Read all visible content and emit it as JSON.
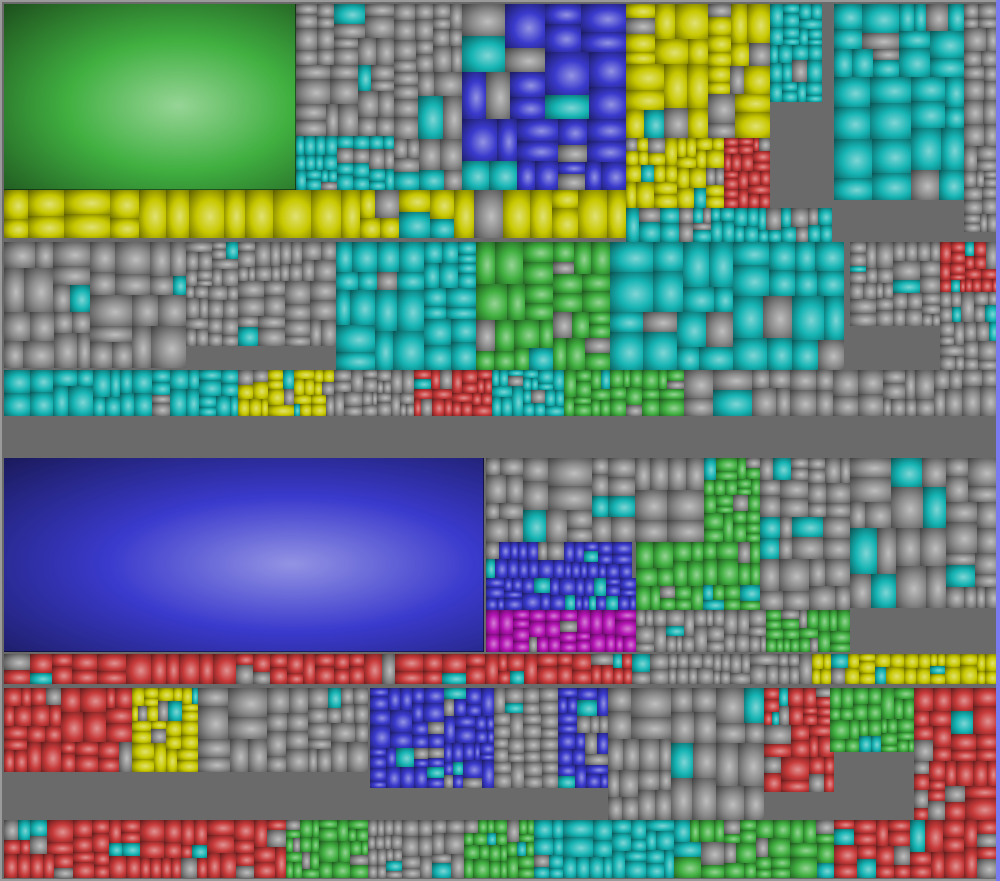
{
  "view": {
    "type": "disk-usage-treemap"
  },
  "palette": {
    "green": "#40b040",
    "gray": "#8a8a8a",
    "cyan": "#16b4b4",
    "blue": "#3a3acd",
    "yellow": "#c8c800",
    "red": "#c83a3a",
    "magenta": "#b414b4",
    "violet": "#7a7af0"
  },
  "blocks": [
    {
      "color": "green",
      "seed": 0,
      "big": true
    },
    {
      "color": "gray",
      "seed": 1
    },
    {
      "color": "cyan",
      "seed": 2
    },
    {
      "color": "gray",
      "seed": 3
    },
    {
      "color": "blue",
      "seed": 4
    },
    {
      "color": "yellow",
      "seed": 5
    },
    {
      "color": "yellow",
      "seed": 6
    },
    {
      "color": "red",
      "seed": 7
    },
    {
      "color": "cyan",
      "seed": 8
    },
    {
      "color": "cyan",
      "seed": 9
    },
    {
      "color": "gray",
      "seed": 10
    },
    {
      "color": "yellow",
      "seed": 11
    },
    {
      "color": "cyan",
      "seed": 12
    },
    {
      "color": "gray",
      "seed": 13
    },
    {
      "color": "gray",
      "seed": 14
    },
    {
      "color": "gray",
      "seed": 15
    },
    {
      "color": "cyan",
      "seed": 16
    },
    {
      "color": "green",
      "seed": 17
    },
    {
      "color": "cyan",
      "seed": 18
    },
    {
      "color": "gray",
      "seed": 19
    },
    {
      "color": "red",
      "seed": 20
    },
    {
      "color": "gray",
      "seed": 21
    },
    {
      "color": "cyan",
      "seed": 22
    },
    {
      "color": "yellow",
      "seed": 23
    },
    {
      "color": "gray",
      "seed": 24
    },
    {
      "color": "red",
      "seed": 25
    },
    {
      "color": "cyan",
      "seed": 26
    },
    {
      "color": "green",
      "seed": 27
    },
    {
      "color": "gray",
      "seed": 28
    },
    {
      "color": "blue",
      "seed": 29,
      "big": true
    },
    {
      "color": "blue",
      "seed": 30
    },
    {
      "color": "gray",
      "seed": 31
    },
    {
      "color": "green",
      "seed": 32
    },
    {
      "color": "gray",
      "seed": 33
    },
    {
      "color": "gray",
      "seed": 34
    },
    {
      "color": "blue",
      "seed": 35
    },
    {
      "color": "green",
      "seed": 36
    },
    {
      "color": "magenta",
      "seed": 37
    },
    {
      "color": "gray",
      "seed": 38
    },
    {
      "color": "green",
      "seed": 39
    },
    {
      "color": "red",
      "seed": 40
    },
    {
      "color": "red",
      "seed": 41
    },
    {
      "color": "gray",
      "seed": 42
    },
    {
      "color": "yellow",
      "seed": 43
    },
    {
      "color": "red",
      "seed": 44
    },
    {
      "color": "yellow",
      "seed": 45
    },
    {
      "color": "gray",
      "seed": 46
    },
    {
      "color": "blue",
      "seed": 47
    },
    {
      "color": "blue",
      "seed": 48
    },
    {
      "color": "gray",
      "seed": 49
    },
    {
      "color": "blue",
      "seed": 50
    },
    {
      "color": "gray",
      "seed": 51
    },
    {
      "color": "red",
      "seed": 52
    },
    {
      "color": "green",
      "seed": 53
    },
    {
      "color": "red",
      "seed": 54
    },
    {
      "color": "red",
      "seed": 55
    },
    {
      "color": "red",
      "seed": 56
    },
    {
      "color": "green",
      "seed": 57
    },
    {
      "color": "gray",
      "seed": 58
    },
    {
      "color": "green",
      "seed": 59
    },
    {
      "color": "cyan",
      "seed": 60
    },
    {
      "color": "green",
      "seed": 61
    },
    {
      "color": "red",
      "seed": 62
    }
  ]
}
